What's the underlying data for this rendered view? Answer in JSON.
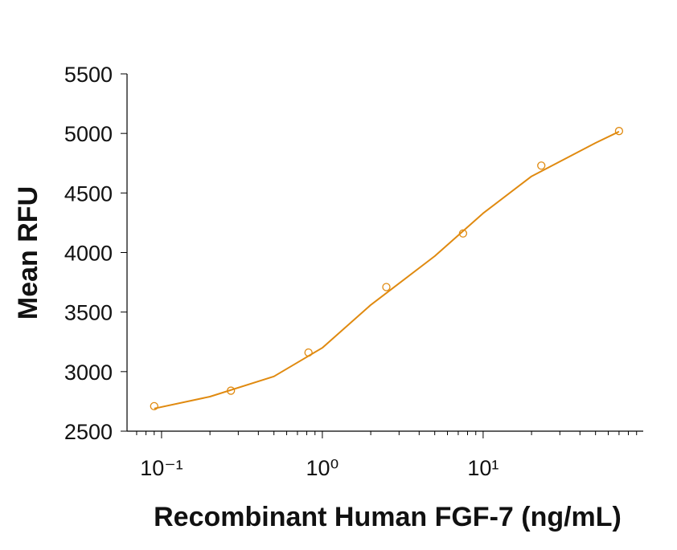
{
  "chart_data": {
    "type": "scatter",
    "x_label": "Recombinant Human FGF-7 (ng/mL)",
    "y_label": "Mean RFU",
    "xscale": "log",
    "xlim": [
      0.061,
      99
    ],
    "ylim": [
      2500,
      5500
    ],
    "xticks": [
      {
        "value": 0.1,
        "label": "10⁻¹"
      },
      {
        "value": 1,
        "label": "10⁰"
      },
      {
        "value": 10,
        "label": "10¹"
      }
    ],
    "xminorticks": [
      0.07,
      0.08,
      0.09,
      0.2,
      0.3,
      0.4,
      0.5,
      0.6,
      0.7,
      0.8,
      0.9,
      2,
      3,
      4,
      5,
      6,
      7,
      8,
      9,
      20,
      30,
      40,
      50,
      60,
      70,
      80,
      90
    ],
    "yticks": [
      2500,
      3000,
      3500,
      4000,
      4500,
      5000,
      5500
    ],
    "series": [
      {
        "color": "#e08a10",
        "marker": "circle",
        "x": [
          0.09,
          0.27,
          0.82,
          2.5,
          7.5,
          23,
          70
        ],
        "values": [
          2710,
          2840,
          3160,
          3710,
          4160,
          4730,
          5020
        ]
      },
      {
        "color": "#e08a10",
        "marker": "line",
        "x": [
          0.09,
          0.2,
          0.5,
          1,
          2,
          5,
          10,
          20,
          50,
          70
        ],
        "values": [
          2690,
          2790,
          2960,
          3200,
          3560,
          3970,
          4330,
          4640,
          4920,
          5015
        ]
      }
    ]
  }
}
